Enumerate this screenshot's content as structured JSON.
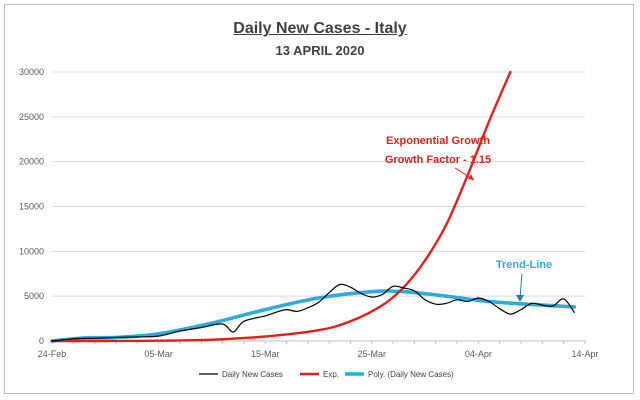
{
  "chart_data": {
    "type": "line",
    "title": "Daily New Cases - Italy",
    "subtitle": "13 APRIL 2020",
    "xlabel": "",
    "ylabel": "",
    "ylim": [
      0,
      30000
    ],
    "yticks": [
      0,
      5000,
      10000,
      15000,
      20000,
      25000,
      30000
    ],
    "xlim": [
      "2020-02-24",
      "2020-04-14"
    ],
    "xticks": [
      {
        "date": "2020-02-24",
        "label": "24-Feb"
      },
      {
        "date": "2020-03-05",
        "label": "05-Mar"
      },
      {
        "date": "2020-03-15",
        "label": "15-Mar"
      },
      {
        "date": "2020-03-25",
        "label": "25-Mar"
      },
      {
        "date": "2020-04-04",
        "label": "04-Apr"
      },
      {
        "date": "2020-04-14",
        "label": "14-Apr"
      }
    ],
    "grid": "horizontal",
    "legend_position": "bottom",
    "series": [
      {
        "name": "Daily New Cases",
        "color": "#000000",
        "style": "thin",
        "points": [
          [
            "2020-02-24",
            0
          ],
          [
            "2020-02-26",
            250
          ],
          [
            "2020-02-28",
            300
          ],
          [
            "2020-03-01",
            400
          ],
          [
            "2020-03-03",
            450
          ],
          [
            "2020-03-05",
            550
          ],
          [
            "2020-03-07",
            1100
          ],
          [
            "2020-03-09",
            1500
          ],
          [
            "2020-03-11",
            1900
          ],
          [
            "2020-03-12",
            1000
          ],
          [
            "2020-03-13",
            2200
          ],
          [
            "2020-03-15",
            2800
          ],
          [
            "2020-03-16",
            3200
          ],
          [
            "2020-03-17",
            3500
          ],
          [
            "2020-03-18",
            3300
          ],
          [
            "2020-03-19",
            3700
          ],
          [
            "2020-03-20",
            4300
          ],
          [
            "2020-03-21",
            5400
          ],
          [
            "2020-03-22",
            6300
          ],
          [
            "2020-03-23",
            6000
          ],
          [
            "2020-03-24",
            5300
          ],
          [
            "2020-03-25",
            4900
          ],
          [
            "2020-03-26",
            5200
          ],
          [
            "2020-03-27",
            6100
          ],
          [
            "2020-03-28",
            5900
          ],
          [
            "2020-03-29",
            5600
          ],
          [
            "2020-03-30",
            4600
          ],
          [
            "2020-03-31",
            4100
          ],
          [
            "2020-04-01",
            4200
          ],
          [
            "2020-04-02",
            4600
          ],
          [
            "2020-04-03",
            4400
          ],
          [
            "2020-04-04",
            4800
          ],
          [
            "2020-04-05",
            4400
          ],
          [
            "2020-04-06",
            3600
          ],
          [
            "2020-04-07",
            3000
          ],
          [
            "2020-04-08",
            3500
          ],
          [
            "2020-04-09",
            4200
          ],
          [
            "2020-04-10",
            4000
          ],
          [
            "2020-04-11",
            3900
          ],
          [
            "2020-04-12",
            4700
          ],
          [
            "2020-04-13",
            3200
          ]
        ]
      },
      {
        "name": "Exp.",
        "color": "#e0201c",
        "style": "thick",
        "points": [
          [
            "2020-02-24",
            0
          ],
          [
            "2020-02-29",
            5
          ],
          [
            "2020-03-05",
            30
          ],
          [
            "2020-03-10",
            150
          ],
          [
            "2020-03-15",
            500
          ],
          [
            "2020-03-20",
            1200
          ],
          [
            "2020-03-23",
            2200
          ],
          [
            "2020-03-26",
            4000
          ],
          [
            "2020-03-28",
            6000
          ],
          [
            "2020-03-30",
            9000
          ],
          [
            "2020-04-01",
            13000
          ],
          [
            "2020-04-03",
            18500
          ],
          [
            "2020-04-05",
            24500
          ],
          [
            "2020-04-07",
            30000
          ]
        ]
      },
      {
        "name": "Poly. (Daily New Cases)",
        "color": "#2eaadc",
        "style": "thick",
        "points": [
          [
            "2020-02-24",
            0
          ],
          [
            "2020-02-27",
            350
          ],
          [
            "2020-03-01",
            400
          ],
          [
            "2020-03-05",
            800
          ],
          [
            "2020-03-10",
            2000
          ],
          [
            "2020-03-15",
            3500
          ],
          [
            "2020-03-20",
            4800
          ],
          [
            "2020-03-25",
            5500
          ],
          [
            "2020-03-28",
            5500
          ],
          [
            "2020-04-01",
            5000
          ],
          [
            "2020-04-05",
            4400
          ],
          [
            "2020-04-10",
            4000
          ],
          [
            "2020-04-13",
            3800
          ]
        ]
      }
    ],
    "annotations": [
      {
        "text": "Exponential Growth",
        "color": "#e0201c"
      },
      {
        "text": "Growth Factor - 1.15",
        "color": "#e0201c"
      },
      {
        "text": "Trend-Line",
        "color": "#2eaadc"
      }
    ]
  }
}
